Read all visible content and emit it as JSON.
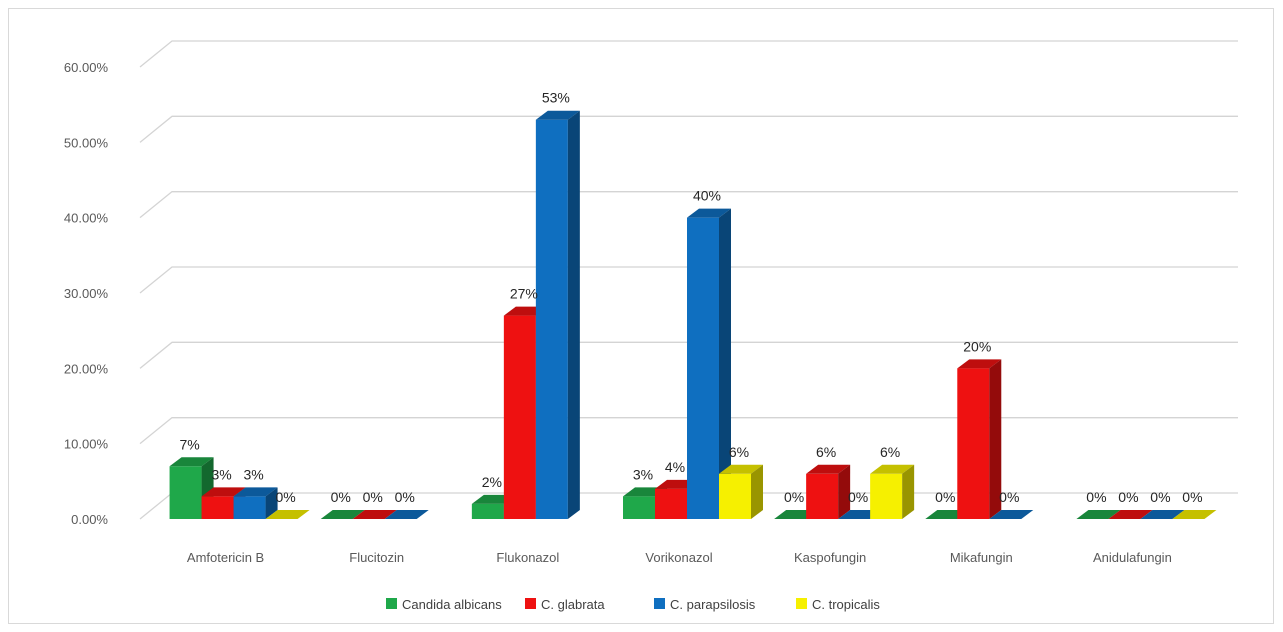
{
  "chart_data": {
    "type": "bar",
    "variant": "3d-clustered-column",
    "title": "",
    "xlabel": "",
    "ylabel": "",
    "ylim": [
      0,
      0.6
    ],
    "ytick_values": [
      0,
      0.1,
      0.2,
      0.3,
      0.4,
      0.5,
      0.6
    ],
    "ytick_labels": [
      "0.00%",
      "10.00%",
      "20.00%",
      "30.00%",
      "40.00%",
      "50.00%",
      "60.00%"
    ],
    "grid": true,
    "legend_position": "bottom",
    "categories": [
      "Amfotericin B",
      "Flucitozin",
      "Flukonazol",
      "Vorikonazol",
      "Kaspofungin",
      "Mikafungin",
      "Anidulafungin"
    ],
    "series": [
      {
        "name": "Candida albicans",
        "color": "#1fa84a",
        "values": [
          0.07,
          0,
          0.02,
          0.03,
          0,
          0,
          0
        ],
        "labels": [
          "7%",
          "0%",
          "2%",
          "3%",
          "0%",
          "0%",
          "0%"
        ]
      },
      {
        "name": "C. glabrata",
        "color": "#ee1111",
        "values": [
          0.03,
          0,
          0.27,
          0.04,
          0.06,
          0.2,
          0
        ],
        "labels": [
          "3%",
          "0%",
          "27%",
          "4%",
          "6%",
          "20%",
          "0%"
        ]
      },
      {
        "name": "C. parapsilosis",
        "color": "#0f6fc0",
        "values": [
          0.03,
          0,
          0.53,
          0.4,
          0,
          0,
          0
        ],
        "labels": [
          "3%",
          "0%",
          "53%",
          "40%",
          "0%",
          "0%",
          "0%"
        ]
      },
      {
        "name": "C. tropicalis",
        "color": "#f6f000",
        "values": [
          0,
          null,
          null,
          0.06,
          0.06,
          null,
          0
        ],
        "labels": [
          "0%",
          "",
          "",
          "6%",
          "6%",
          "",
          "0%"
        ]
      }
    ]
  }
}
